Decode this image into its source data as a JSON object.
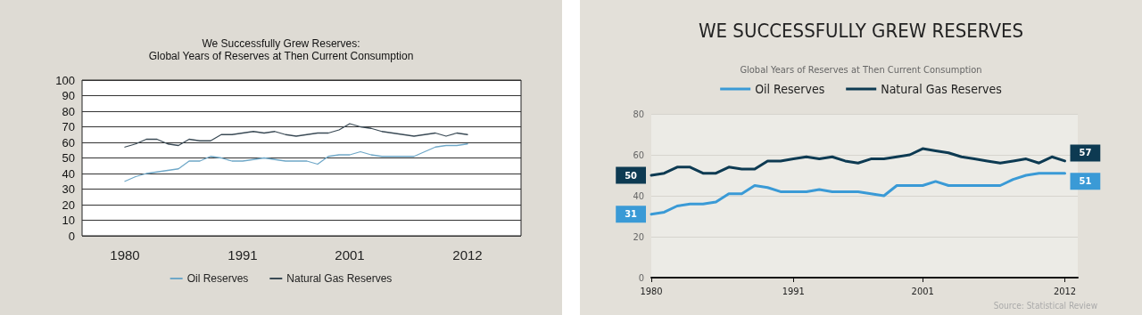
{
  "chart_data": [
    {
      "type": "line",
      "title": "We Successfully Grew Reserves:",
      "subtitle": "Global Years of Reserves at Then Current Consumption",
      "x": [
        1980,
        1981,
        1982,
        1983,
        1984,
        1985,
        1986,
        1987,
        1988,
        1989,
        1990,
        1991,
        1992,
        1993,
        1994,
        1995,
        1996,
        1997,
        1998,
        1999,
        2000,
        2001,
        2002,
        2003,
        2004,
        2005,
        2006,
        2007,
        2008,
        2009,
        2010,
        2011,
        2012
      ],
      "xlim": [
        1976,
        2017
      ],
      "xticks": [
        1980,
        1991,
        2001,
        2012
      ],
      "ylim": [
        0,
        100
      ],
      "yticks": [
        0,
        10,
        20,
        30,
        40,
        50,
        60,
        70,
        80,
        90,
        100
      ],
      "series": [
        {
          "name": "Oil Reserves",
          "color": "#6fa8c8",
          "values": [
            35,
            38,
            40,
            41,
            42,
            43,
            48,
            48,
            51,
            50,
            48,
            48,
            49,
            50,
            49,
            48,
            48,
            48,
            46,
            51,
            52,
            52,
            54,
            52,
            51,
            51,
            51,
            51,
            54,
            57,
            58,
            58,
            59
          ]
        },
        {
          "name": "Natural Gas Reserves",
          "color": "#3a4a55",
          "values": [
            57,
            59,
            62,
            62,
            59,
            58,
            62,
            61,
            61,
            65,
            65,
            66,
            67,
            66,
            67,
            65,
            64,
            65,
            66,
            66,
            68,
            72,
            70,
            69,
            67,
            66,
            65,
            64,
            65,
            66,
            64,
            66,
            65
          ]
        }
      ],
      "grid": "y",
      "legend": "bottom",
      "marker": "none",
      "line_style": "solid"
    },
    {
      "type": "line",
      "title": "WE SUCCESSFULLY GREW RESERVES",
      "subtitle": "Global Years of Reserves at Then Current Consumption",
      "x": [
        1980,
        1981,
        1982,
        1983,
        1984,
        1985,
        1986,
        1987,
        1988,
        1989,
        1990,
        1991,
        1992,
        1993,
        1994,
        1995,
        1996,
        1997,
        1998,
        1999,
        2000,
        2001,
        2002,
        2003,
        2004,
        2005,
        2006,
        2007,
        2008,
        2009,
        2010,
        2011,
        2012
      ],
      "xlim": [
        1980,
        2013
      ],
      "xticks": [
        1980,
        1991,
        2001,
        2012
      ],
      "ylim": [
        0,
        80
      ],
      "yticks": [
        0,
        20,
        40,
        60,
        80
      ],
      "series": [
        {
          "name": "Oil Reserves",
          "color": "#3a9ad6",
          "values": [
            31,
            32,
            35,
            36,
            36,
            37,
            41,
            41,
            45,
            44,
            42,
            42,
            42,
            43,
            42,
            42,
            42,
            41,
            40,
            45,
            45,
            45,
            47,
            45,
            45,
            45,
            45,
            45,
            48,
            50,
            51,
            51,
            51
          ],
          "value_labels": [
            "31",
            null,
            null,
            null,
            null,
            null,
            null,
            null,
            null,
            null,
            null,
            null,
            null,
            null,
            null,
            null,
            null,
            null,
            null,
            null,
            null,
            null,
            null,
            null,
            null,
            null,
            null,
            null,
            null,
            null,
            null,
            null,
            "51"
          ]
        },
        {
          "name": "Natural Gas Reserves",
          "color": "#0d3a52",
          "values": [
            50,
            51,
            54,
            54,
            51,
            51,
            54,
            53,
            53,
            57,
            57,
            58,
            59,
            58,
            59,
            57,
            56,
            58,
            58,
            59,
            60,
            63,
            62,
            61,
            59,
            58,
            57,
            56,
            57,
            58,
            56,
            59,
            57
          ],
          "value_labels": [
            "50",
            null,
            null,
            null,
            null,
            null,
            null,
            null,
            null,
            null,
            null,
            null,
            null,
            null,
            null,
            null,
            null,
            null,
            null,
            null,
            null,
            null,
            null,
            null,
            null,
            null,
            null,
            null,
            null,
            null,
            null,
            null,
            "57"
          ]
        }
      ],
      "grid": "y",
      "legend": "top",
      "marker": "none",
      "line_style": "solid",
      "annotations": [
        "Source: Statistical Review"
      ]
    }
  ]
}
